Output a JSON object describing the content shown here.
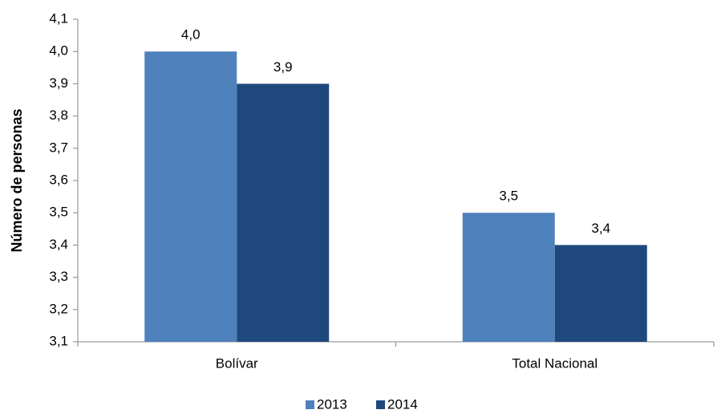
{
  "chart_data": {
    "type": "bar",
    "y_label": "Número de personas",
    "categories": [
      "Bolívar",
      "Total Nacional"
    ],
    "series": [
      {
        "name": "2013",
        "color": "#4f81bd",
        "values": [
          4.0,
          3.5
        ],
        "value_labels": [
          "4,0",
          "3,5"
        ]
      },
      {
        "name": "2014",
        "color": "#1f497d",
        "values": [
          3.9,
          3.4
        ],
        "value_labels": [
          "3,9",
          "3,4"
        ]
      }
    ],
    "ylim": [
      3.1,
      4.1
    ],
    "yticks": [
      {
        "value": 3.1,
        "label": "3,1"
      },
      {
        "value": 3.2,
        "label": "3,2"
      },
      {
        "value": 3.3,
        "label": "3,3"
      },
      {
        "value": 3.4,
        "label": "3,4"
      },
      {
        "value": 3.5,
        "label": "3,5"
      },
      {
        "value": 3.6,
        "label": "3,6"
      },
      {
        "value": 3.7,
        "label": "3,7"
      },
      {
        "value": 3.8,
        "label": "3,8"
      },
      {
        "value": 3.9,
        "label": "3,9"
      },
      {
        "value": 4.0,
        "label": "4,0"
      },
      {
        "value": 4.1,
        "label": "4,1"
      }
    ],
    "grid": false,
    "legend": "bottom"
  }
}
